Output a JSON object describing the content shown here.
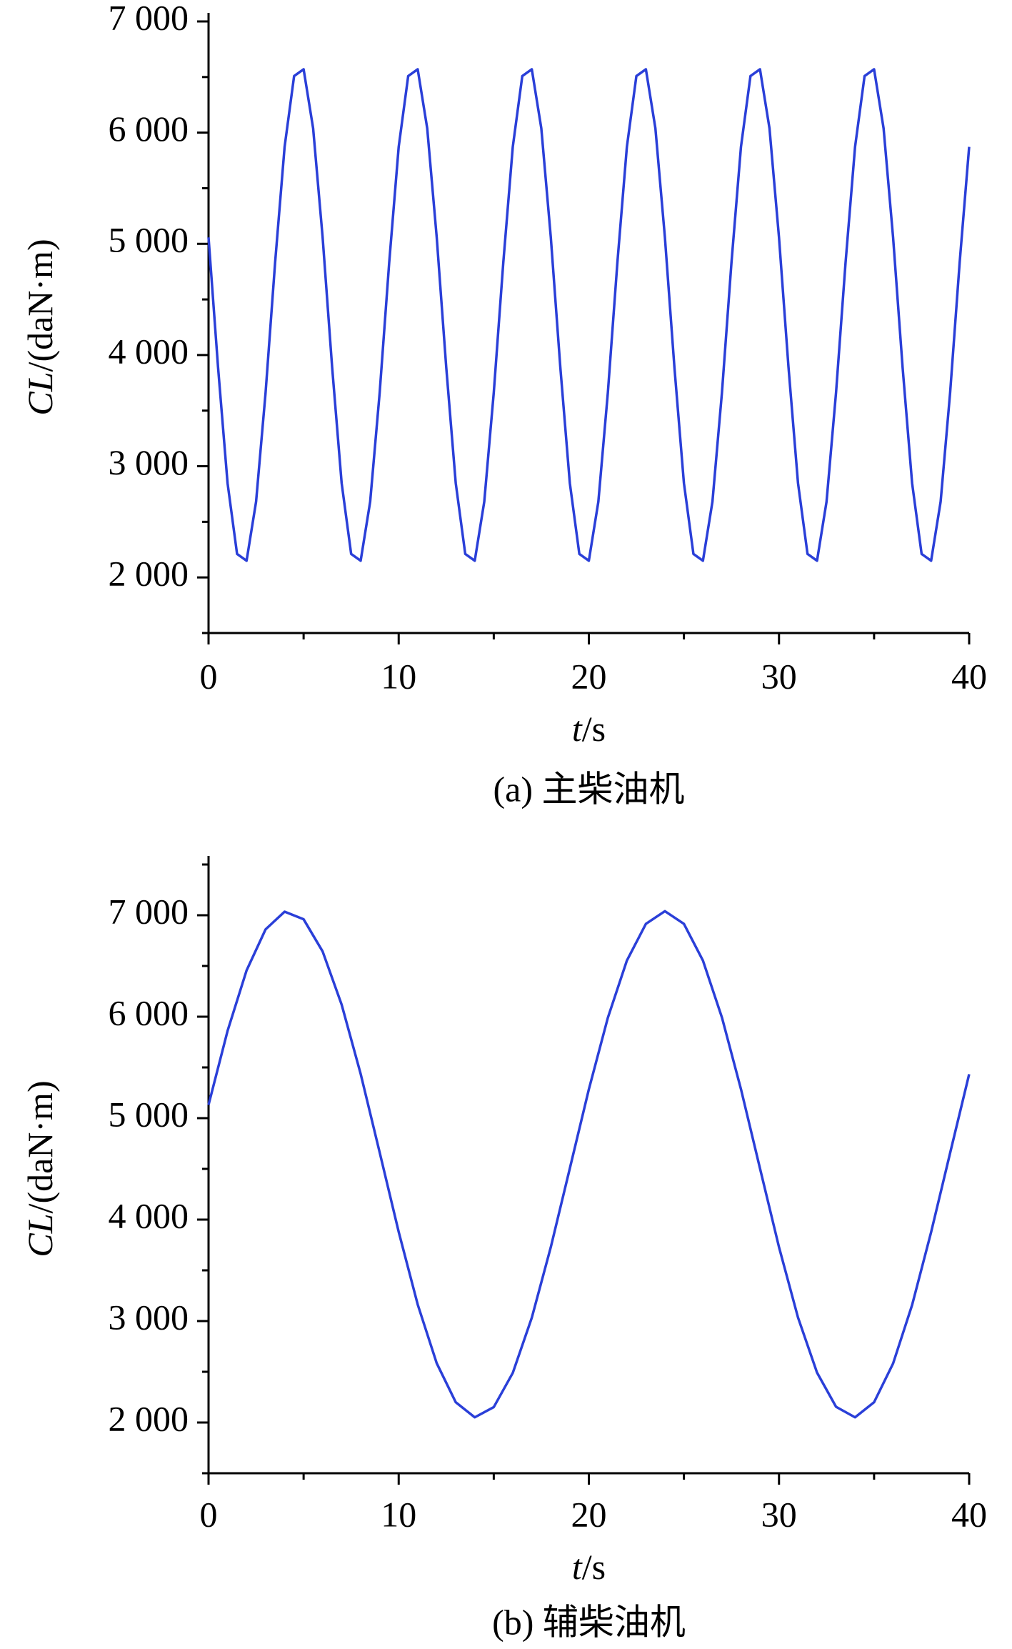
{
  "chart_data": [
    {
      "type": "line",
      "caption": "(a) 主柴油机",
      "y_label_var": "CL",
      "y_label_unit": "/(daN·m)",
      "x_label_var": "t",
      "x_label_unit": "/s",
      "xlim": [
        0,
        40
      ],
      "xticks": [
        0,
        10,
        20,
        30,
        40
      ],
      "minor_xticks": [
        5,
        15,
        25,
        35
      ],
      "ylim": [
        1500,
        7000
      ],
      "yticks": [
        {
          "value": 2000,
          "label": "2 000"
        },
        {
          "value": 3000,
          "label": "3 000"
        },
        {
          "value": 4000,
          "label": "4 000"
        },
        {
          "value": 5000,
          "label": "5 000"
        },
        {
          "value": 6000,
          "label": "6 000"
        },
        {
          "value": 7000,
          "label": "7 000"
        }
      ],
      "minor_yticks": [
        1500,
        2500,
        3500,
        4500,
        5500,
        6500
      ],
      "series": [
        {
          "color": "#2a3fd8",
          "x": [
            0,
            0.5,
            1,
            1.5,
            2,
            2.5,
            3,
            3.5,
            4,
            4.5,
            5,
            5.5,
            6,
            6.5,
            7,
            7.5,
            8,
            8.5,
            9,
            9.5,
            10,
            10.5,
            11,
            11.5,
            12,
            12.5,
            13,
            13.5,
            14,
            14.5,
            15,
            15.5,
            16,
            16.5,
            17,
            17.5,
            18,
            18.5,
            19,
            19.5,
            20,
            20.5,
            21,
            21.5,
            22,
            22.5,
            23,
            23.5,
            24,
            24.5,
            25,
            25.5,
            26,
            26.5,
            27,
            27.5,
            28,
            28.5,
            29,
            29.5,
            30,
            30.5,
            31,
            31.5,
            32,
            32.5,
            33,
            33.5,
            34,
            34.5,
            35,
            35.5,
            36,
            36.5,
            37,
            37.5,
            38,
            38.5,
            39,
            39.5,
            40
          ],
          "values": [
            5058,
            3890,
            2848,
            2211,
            2150,
            2681,
            3662,
            4830,
            5872,
            6509,
            6570,
            6039,
            5058,
            3890,
            2848,
            2211,
            2150,
            2681,
            3662,
            4830,
            5872,
            6509,
            6570,
            6039,
            5058,
            3890,
            2848,
            2211,
            2150,
            2681,
            3662,
            4830,
            5872,
            6509,
            6570,
            6039,
            5058,
            3890,
            2848,
            2211,
            2150,
            2681,
            3662,
            4830,
            5872,
            6509,
            6570,
            6039,
            5058,
            3890,
            2848,
            2211,
            2150,
            2681,
            3662,
            4830,
            5872,
            6509,
            6570,
            6039,
            5058,
            3890,
            2848,
            2211,
            2150,
            2681,
            3662,
            4830,
            5872,
            6509,
            6570,
            6039,
            5058,
            3890,
            2848,
            2211,
            2150,
            2681,
            3662,
            4830,
            5872
          ]
        }
      ]
    },
    {
      "type": "line",
      "caption": "(b) 辅柴油机",
      "y_label_var": "CL",
      "y_label_unit": "/(daN·m)",
      "x_label_var": "t",
      "x_label_unit": "/s",
      "xlim": [
        0,
        40
      ],
      "xticks": [
        0,
        10,
        20,
        30,
        40
      ],
      "minor_xticks": [
        5,
        15,
        25,
        35
      ],
      "ylim": [
        1500,
        7500
      ],
      "yticks": [
        {
          "value": 2000,
          "label": "2 000"
        },
        {
          "value": 3000,
          "label": "3 000"
        },
        {
          "value": 4000,
          "label": "4 000"
        },
        {
          "value": 5000,
          "label": "5 000"
        },
        {
          "value": 6000,
          "label": "6 000"
        },
        {
          "value": 7000,
          "label": "7 000"
        }
      ],
      "minor_yticks": [
        1500,
        2500,
        3500,
        4500,
        5500,
        6500,
        7500
      ],
      "series": [
        {
          "color": "#2a3fd8",
          "x": [
            0,
            1,
            2,
            3,
            4,
            5,
            6,
            7,
            8,
            9,
            10,
            11,
            12,
            13,
            14,
            15,
            16,
            17,
            18,
            19,
            20,
            21,
            22,
            23,
            24,
            25,
            26,
            27,
            28,
            29,
            30,
            31,
            32,
            33,
            34,
            35,
            36,
            37,
            38,
            39,
            40
          ],
          "values": [
            5131,
            5860,
            6456,
            6861,
            7035,
            6960,
            6643,
            6119,
            5436,
            4662,
            3879,
            3163,
            2584,
            2200,
            2051,
            2152,
            2489,
            3033,
            3729,
            4505,
            5284,
            5990,
            6553,
            6915,
            7040,
            6915,
            6553,
            5992,
            5286,
            4505,
            3729,
            3035,
            2492,
            2155,
            2051,
            2200,
            2582,
            3158,
            3876,
            4657,
            5433
          ]
        }
      ]
    }
  ]
}
